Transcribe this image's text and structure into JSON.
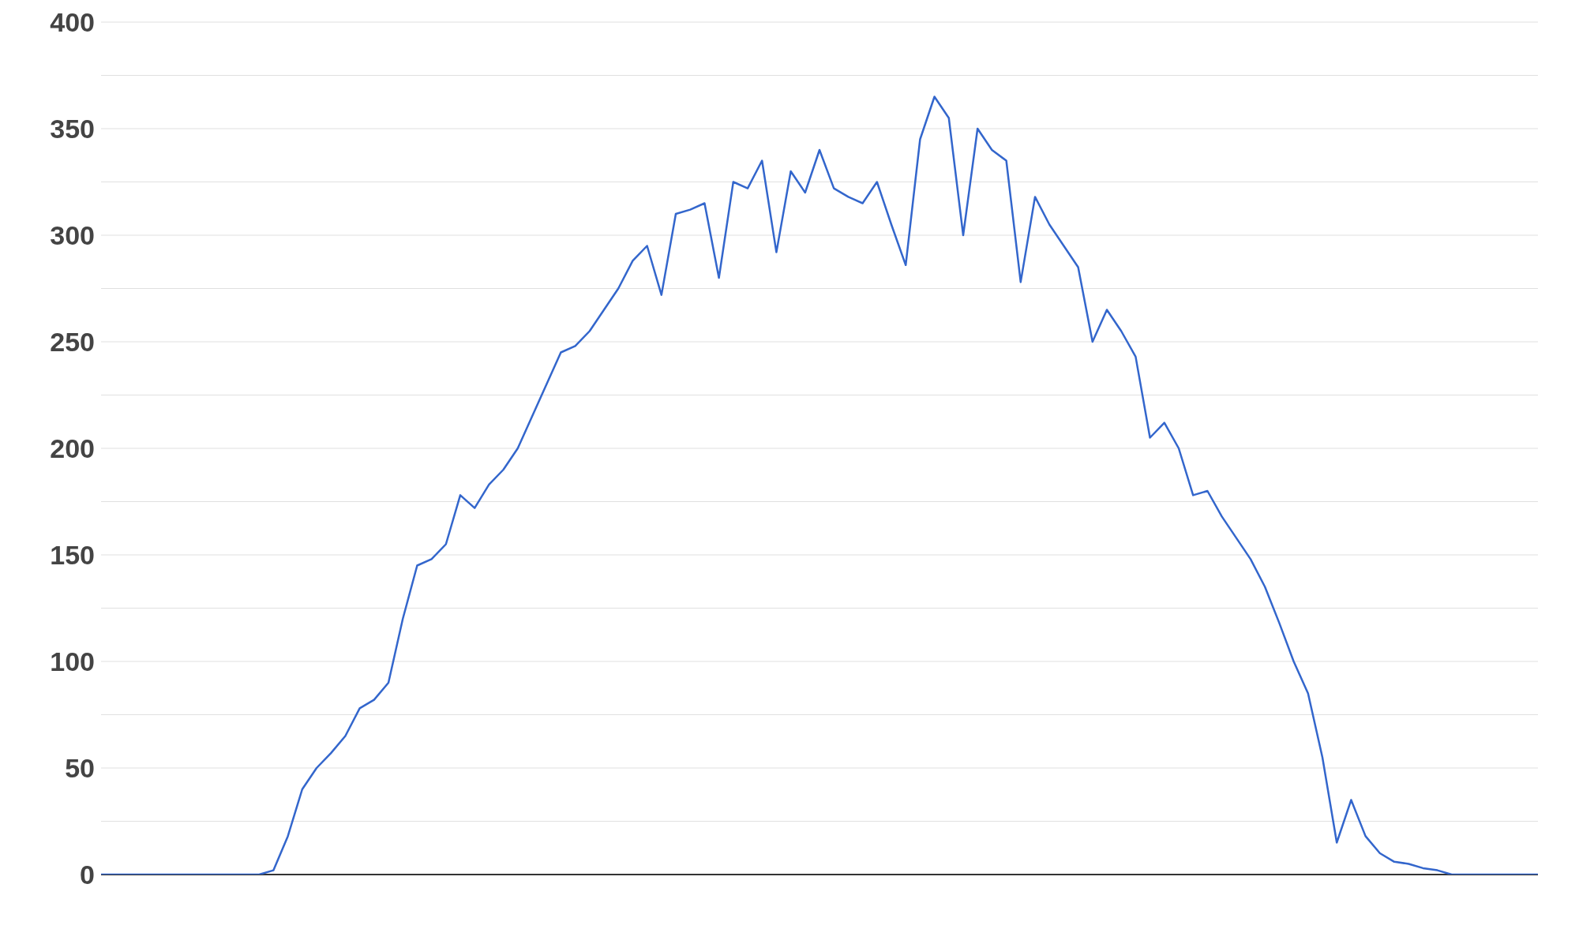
{
  "chart_data": {
    "type": "line",
    "categories": [
      null,
      null,
      null,
      null,
      null,
      null,
      null,
      null,
      null,
      null,
      null,
      null,
      null,
      null,
      null,
      null,
      null,
      null,
      null,
      null,
      null,
      null,
      null,
      null,
      null,
      null,
      null,
      null,
      null,
      null,
      null,
      null,
      null,
      null,
      null,
      null,
      null,
      null,
      null,
      null,
      null,
      null,
      null,
      null,
      null,
      null,
      null,
      null,
      null,
      null,
      null,
      null,
      null,
      null,
      null,
      null,
      null,
      null,
      null,
      null,
      null,
      null,
      null,
      null,
      null,
      null,
      null,
      null,
      null,
      null,
      null,
      null,
      null,
      null,
      null,
      null,
      null,
      null,
      null,
      null,
      null,
      null,
      null,
      null,
      null,
      null,
      null,
      null,
      null,
      null,
      null,
      null,
      null,
      null,
      null,
      null,
      null,
      null,
      null,
      null,
      null
    ],
    "series": [
      {
        "color": "#3366cc",
        "values": [
          0,
          0,
          0,
          0,
          0,
          0,
          0,
          0,
          0,
          0,
          0,
          0,
          2,
          18,
          40,
          50,
          57,
          65,
          78,
          82,
          90,
          120,
          145,
          148,
          155,
          178,
          172,
          183,
          190,
          200,
          215,
          230,
          245,
          248,
          255,
          265,
          275,
          288,
          295,
          272,
          310,
          312,
          315,
          280,
          325,
          322,
          335,
          292,
          330,
          320,
          340,
          322,
          318,
          315,
          325,
          305,
          286,
          345,
          365,
          355,
          300,
          350,
          340,
          335,
          278,
          318,
          305,
          295,
          285,
          250,
          265,
          255,
          243,
          205,
          212,
          200,
          178,
          180,
          168,
          158,
          148,
          135,
          118,
          100,
          85,
          55,
          15,
          35,
          18,
          10,
          6,
          5,
          3,
          2,
          0,
          0,
          0,
          0,
          0,
          0,
          0
        ]
      }
    ],
    "ylim": [
      0,
      400
    ],
    "yticks": [
      0,
      {
        "value": 25,
        "label": null
      },
      50,
      {
        "value": 75,
        "label": null
      },
      100,
      {
        "value": 125,
        "label": null
      },
      150,
      {
        "value": 175,
        "label": null
      },
      200,
      {
        "value": 225,
        "label": null
      },
      250,
      {
        "value": 275,
        "label": null
      },
      300,
      {
        "value": 325,
        "label": null
      },
      350,
      {
        "value": 375,
        "label": null
      },
      400
    ],
    "grid": "y",
    "tick_labels": "y",
    "marker": "none",
    "line_style": "solid"
  }
}
